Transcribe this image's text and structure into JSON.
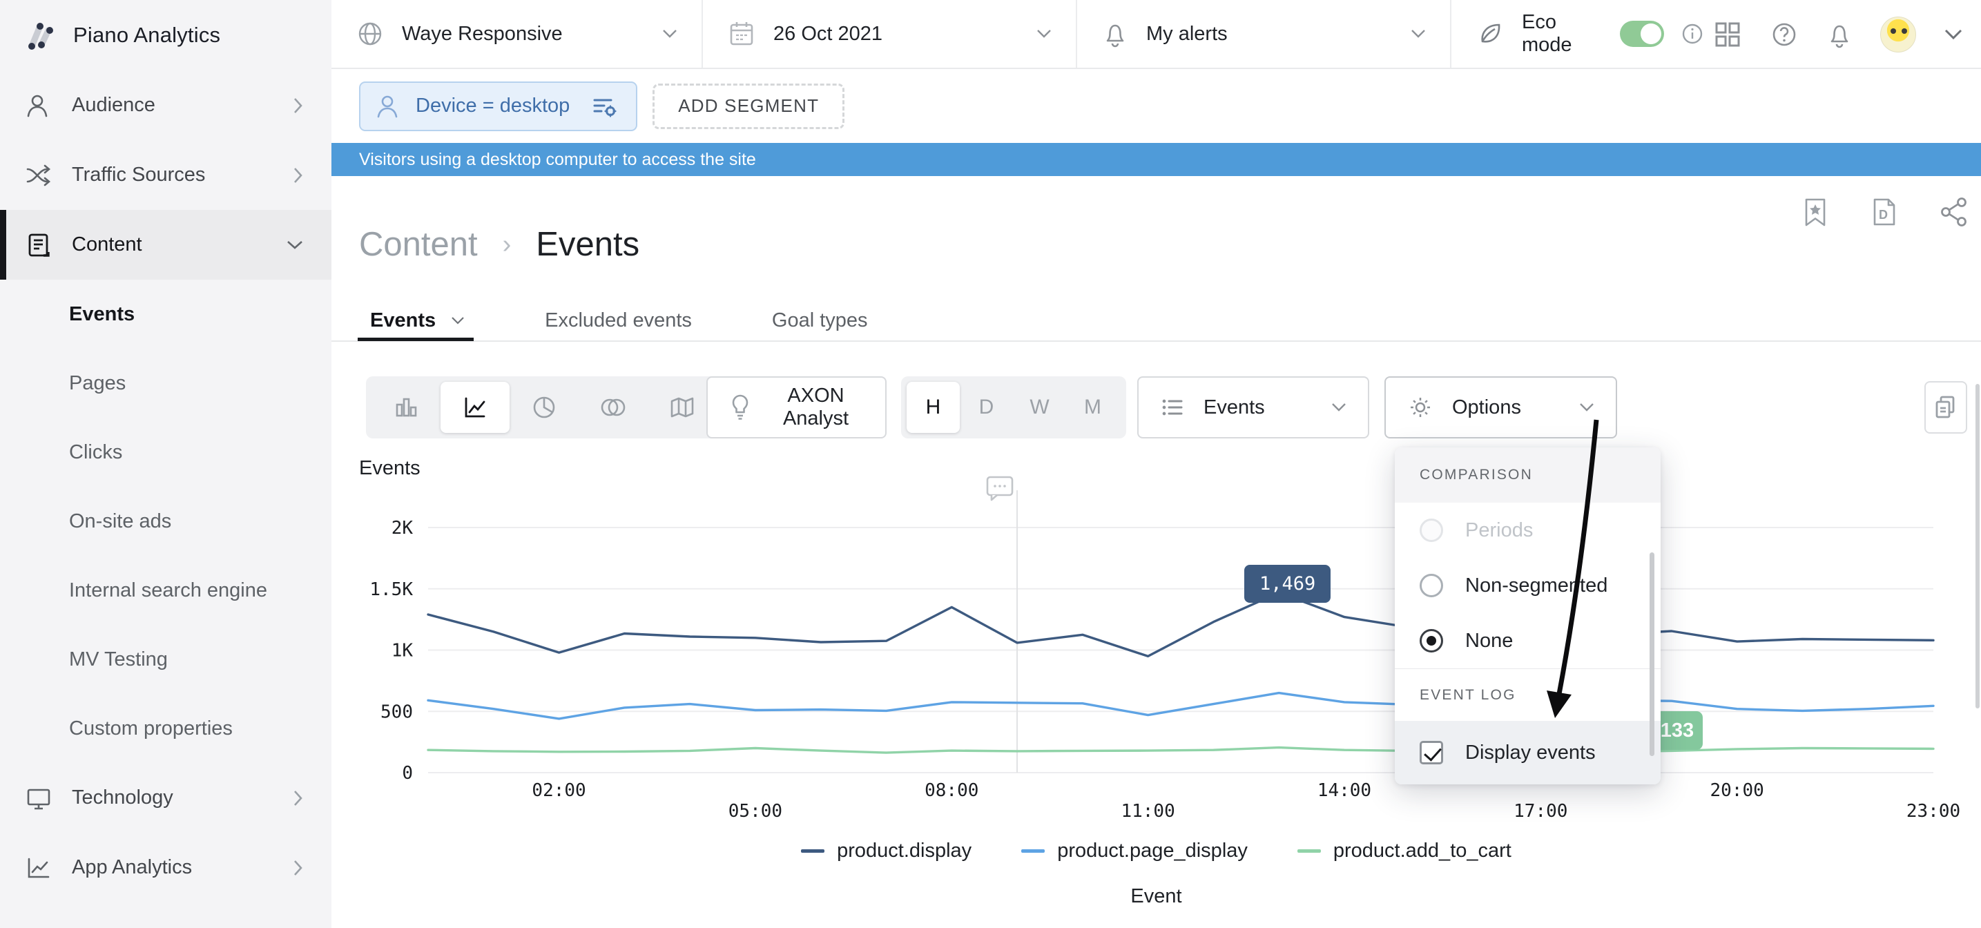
{
  "brand": {
    "name": "Piano Analytics"
  },
  "topbar": {
    "site": {
      "label": "Waye Responsive"
    },
    "date": {
      "label": "26 Oct 2021"
    },
    "alerts": {
      "label": "My alerts"
    },
    "eco": {
      "label": "Eco mode",
      "enabled": true
    }
  },
  "sidebar": {
    "items": [
      {
        "label": "Audience"
      },
      {
        "label": "Traffic Sources"
      },
      {
        "label": "Content"
      },
      {
        "label": "Events"
      },
      {
        "label": "Pages"
      },
      {
        "label": "Clicks"
      },
      {
        "label": "On-site ads"
      },
      {
        "label": "Internal search engine"
      },
      {
        "label": "MV Testing"
      },
      {
        "label": "Custom properties"
      },
      {
        "label": "Technology"
      },
      {
        "label": "App Analytics"
      }
    ]
  },
  "segments": {
    "active_segment": "Device = desktop",
    "add_button": "ADD SEGMENT",
    "description": "Visitors using a desktop computer to access the site"
  },
  "breadcrumb": {
    "parent": "Content",
    "separator": "›",
    "current": "Events"
  },
  "tabs": {
    "events": "Events",
    "excluded": "Excluded events",
    "goal_types": "Goal types"
  },
  "toolbar": {
    "axon_button": "AXON Analyst",
    "granularity": {
      "h": "H",
      "d": "D",
      "w": "W",
      "m": "M",
      "selected": "H"
    },
    "metric_dropdown": "Events",
    "options_dropdown": "Options"
  },
  "options_menu": {
    "comparison": {
      "header": "COMPARISON",
      "periods": "Periods",
      "non_segmented": "Non-segmented",
      "none": "None",
      "selected": "None",
      "periods_disabled": true
    },
    "event_log": {
      "header": "EVENT LOG",
      "display_events": "Display events",
      "display_events_checked": true
    }
  },
  "chart_data": {
    "type": "line",
    "title": "Events",
    "xlabel": "Event",
    "x": [
      "00:00",
      "01:00",
      "02:00",
      "03:00",
      "04:00",
      "05:00",
      "06:00",
      "07:00",
      "08:00",
      "09:00",
      "10:00",
      "11:00",
      "12:00",
      "13:00",
      "14:00",
      "15:00",
      "16:00",
      "17:00",
      "18:00",
      "19:00",
      "20:00",
      "21:00",
      "22:00",
      "23:00"
    ],
    "x_ticks": [
      {
        "hour": 2,
        "label": "02:00",
        "row": 0
      },
      {
        "hour": 5,
        "label": "05:00",
        "row": 1
      },
      {
        "hour": 8,
        "label": "08:00",
        "row": 0
      },
      {
        "hour": 11,
        "label": "11:00",
        "row": 1
      },
      {
        "hour": 14,
        "label": "14:00",
        "row": 0
      },
      {
        "hour": 17,
        "label": "17:00",
        "row": 1
      },
      {
        "hour": 20,
        "label": "20:00",
        "row": 0
      },
      {
        "hour": 23,
        "label": "23:00",
        "row": 1
      }
    ],
    "ylim": [
      0,
      2000
    ],
    "y_ticks": [
      {
        "value": 2000,
        "label": "2K"
      },
      {
        "value": 1500,
        "label": "1.5K"
      },
      {
        "value": 1000,
        "label": "1K"
      },
      {
        "value": 500,
        "label": "500"
      },
      {
        "value": 0,
        "label": "0"
      }
    ],
    "grid": true,
    "legend_position": "bottom",
    "series": [
      {
        "name": "product.display",
        "color": "#3d5a80",
        "values": [
          1290,
          1150,
          980,
          1135,
          1110,
          1100,
          1065,
          1075,
          1350,
          1060,
          1125,
          950,
          1230,
          1469,
          1270,
          1185,
          1120,
          1130,
          1125,
          1155,
          1070,
          1090,
          1085,
          1080
        ]
      },
      {
        "name": "product.page_display",
        "color": "#5ea3e4",
        "values": [
          590,
          520,
          440,
          530,
          560,
          510,
          515,
          505,
          575,
          570,
          565,
          470,
          560,
          650,
          575,
          555,
          545,
          550,
          590,
          585,
          520,
          505,
          520,
          545
        ]
      },
      {
        "name": "product.add_to_cart",
        "color": "#90d3a8",
        "values": [
          185,
          175,
          170,
          172,
          178,
          200,
          180,
          163,
          180,
          175,
          178,
          180,
          185,
          205,
          185,
          178,
          175,
          172,
          170,
          178,
          192,
          200,
          198,
          195
        ]
      }
    ],
    "tooltip": {
      "value": "1,469",
      "series": "product.display",
      "hour_label": "13:00"
    },
    "event_log_badge": {
      "value": "133"
    },
    "hover_line_hour": 9
  },
  "colors": {
    "banner": "#4f9bd9",
    "segment_text": "#3f6ea9",
    "accent_navy": "#3d5a80",
    "accent_blue": "#5ea3e4",
    "accent_green": "#90d3a8",
    "toggle_green": "#90ca96"
  }
}
